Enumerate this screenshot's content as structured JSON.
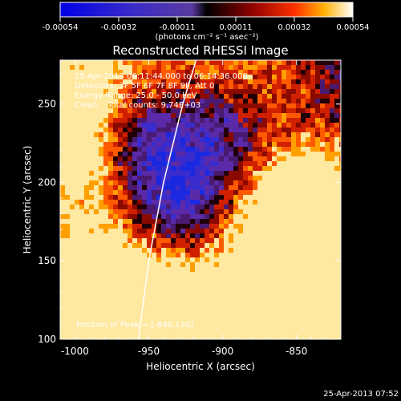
{
  "chart_data": {
    "type": "heatmap",
    "title": "Reconstructed RHESSI Image",
    "xlabel": "Heliocentric X (arcsec)",
    "ylabel": "Heliocentric Y (arcsec)",
    "xlim": [
      -1010,
      -820
    ],
    "ylim": [
      100,
      278
    ],
    "xticks": [
      -1000,
      -950,
      -900,
      -850
    ],
    "yticks": [
      100,
      150,
      200,
      250
    ],
    "colorbar": {
      "ticks": [
        "-0.00054",
        "-0.00032",
        "-0.00011",
        "0.00011",
        "0.00032",
        "0.00054"
      ],
      "label": "(photons cm⁻² s⁻¹ asec⁻²)",
      "range": [
        -0.00054,
        0.00054
      ]
    },
    "annotations": {
      "time_range": "25-Apr-2013 06:11:44.000 to 06:14:36.000",
      "detectors": "Detectors: 3F 5F 6F 7F 8F 9F, Att 0",
      "energy": "Energy Range: 25.0 - 50.0 keV",
      "clean": "Clean    Total counts: 9.74E+03",
      "peak": "Position of Peak = [-840,130]"
    },
    "peak": [
      -840,
      130
    ],
    "limb": [
      [
        -957,
        100
      ],
      [
        -950,
        150
      ],
      [
        -940,
        200
      ],
      [
        -927,
        250
      ],
      [
        -918,
        278
      ]
    ]
  },
  "footer": {
    "timestamp": "25-Apr-2013 07:52"
  }
}
